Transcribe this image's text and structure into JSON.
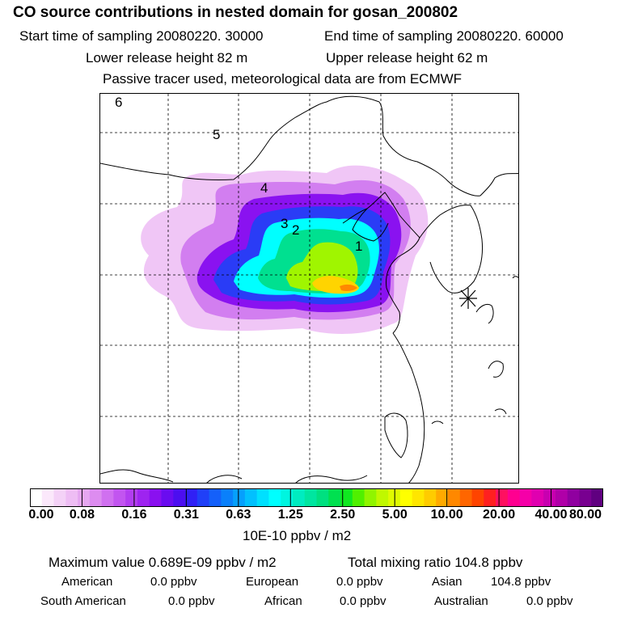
{
  "header": {
    "title": "CO  source contributions in nested domain for gosan_200802",
    "start_label": "Start time of sampling 20080220. 30000",
    "end_label": "End time of sampling 20080220. 60000",
    "lower_release": "Lower release height   82 m",
    "upper_release": "Upper release height   62 m",
    "tracer_note": "Passive tracer used, meteorological data are from ECMWF"
  },
  "map": {
    "point_labels": [
      "1",
      "2",
      "3",
      "4",
      "5",
      "6"
    ],
    "receptor_marker": "star-marker"
  },
  "colorbar": {
    "tick_labels": [
      "0.00",
      "0.08",
      "0.16",
      "0.31",
      "0.63",
      "1.25",
      "2.50",
      "5.00",
      "10.00",
      "20.00",
      "40.00",
      "80.00"
    ],
    "unit": "10E-10 ppbv / m2",
    "colors": [
      "#ffffff",
      "#fbe8fb",
      "#f4d2f7",
      "#eebdf4",
      "#e6a7f1",
      "#dd8cf0",
      "#d070f0",
      "#c255f0",
      "#b23df0",
      "#9e24f0",
      "#8a10f0",
      "#6a0cf0",
      "#4c0ef0",
      "#3020f5",
      "#2040f8",
      "#1460fa",
      "#0a80fb",
      "#06a0fd",
      "#02c0fe",
      "#00e0ff",
      "#00ffff",
      "#00f5e0",
      "#00ecc0",
      "#00e6a0",
      "#00e080",
      "#00e050",
      "#10e820",
      "#50f000",
      "#90f500",
      "#c0f800",
      "#e0fa00",
      "#ffff00",
      "#ffe600",
      "#ffcc00",
      "#ffaa00",
      "#ff8800",
      "#ff6600",
      "#ff4400",
      "#ff2020",
      "#ff1060",
      "#ff0090",
      "#f500a8",
      "#e000b0",
      "#c800b0",
      "#b000a8",
      "#9000a0",
      "#780090",
      "#600080"
    ]
  },
  "stats": {
    "max_value": "Maximum value  0.689E-09 ppbv / m2",
    "total_mixing": "Total mixing ratio      104.8 ppbv",
    "american_label": "American",
    "american_value": "0.0 ppbv",
    "european_label": "European",
    "european_value": "0.0 ppbv",
    "asian_label": "Asian",
    "asian_value": "104.8 ppbv",
    "south_american_label": "South American",
    "south_american_value": "0.0 ppbv",
    "african_label": "African",
    "african_value": "0.0 ppbv",
    "australian_label": "Australian",
    "australian_value": "0.0 ppbv"
  }
}
